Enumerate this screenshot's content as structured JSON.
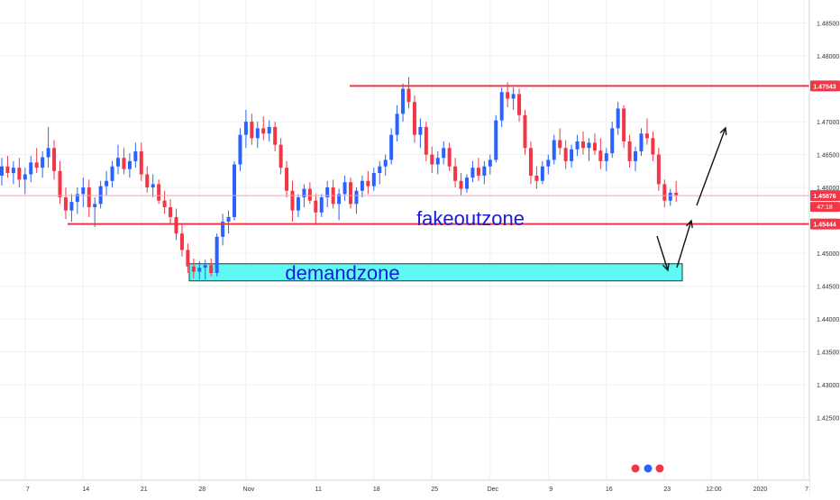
{
  "chart_data": {
    "type": "candlestick",
    "y_axis": {
      "range": [
        1.4155,
        1.4885
      ],
      "ticks": [
        "1.48500",
        "1.48000",
        "1.47000",
        "1.46500",
        "1.46000",
        "1.45000",
        "1.44500",
        "1.44000",
        "1.43500",
        "1.43000",
        "1.42500"
      ],
      "tick_values": [
        1.485,
        1.48,
        1.47,
        1.465,
        1.46,
        1.45,
        1.445,
        1.44,
        1.435,
        1.43,
        1.425
      ]
    },
    "x_axis": {
      "labels": [
        "7",
        "14",
        "21",
        "28",
        "Nov",
        "11",
        "18",
        "25",
        "Dec",
        "9",
        "16",
        "23",
        "12:00",
        "2020",
        "7"
      ],
      "label_index": [
        4,
        14,
        24,
        34,
        42,
        54,
        64,
        74,
        84,
        94,
        104,
        114,
        122,
        130,
        138
      ]
    },
    "horizontal_levels": [
      {
        "name": "resistance",
        "value": 1.47543,
        "label": "1.47543",
        "color": "#f23645"
      },
      {
        "name": "support",
        "value": 1.45444,
        "label": "1.45444",
        "color": "#f23645"
      }
    ],
    "current_price": {
      "value": 1.45876,
      "label": "1.45876",
      "countdown": "47:18",
      "color": "#f23645"
    },
    "zones": [
      {
        "name": "demandzone",
        "label": "demandzone",
        "top": 1.4484,
        "bottom": 1.4458,
        "fill": "#5ff8f5"
      }
    ],
    "annotations": [
      {
        "text": "fakeoutzone",
        "color": "#1a1adc"
      }
    ],
    "colors": {
      "up": "#2962ff",
      "down": "#f23645",
      "grid": "#edf0f5"
    },
    "ohlc": [
      [
        1.4618,
        1.4645,
        1.4603,
        1.4632
      ],
      [
        1.4632,
        1.4648,
        1.4615,
        1.4622
      ],
      [
        1.4622,
        1.464,
        1.4605,
        1.463
      ],
      [
        1.463,
        1.4645,
        1.46,
        1.4612
      ],
      [
        1.4612,
        1.463,
        1.459,
        1.462
      ],
      [
        1.462,
        1.4648,
        1.4608,
        1.4638
      ],
      [
        1.4638,
        1.466,
        1.4622,
        1.463
      ],
      [
        1.463,
        1.4655,
        1.4615,
        1.4646
      ],
      [
        1.4646,
        1.4692,
        1.463,
        1.466
      ],
      [
        1.466,
        1.4672,
        1.4612,
        1.4625
      ],
      [
        1.4625,
        1.464,
        1.4575,
        1.4585
      ],
      [
        1.4585,
        1.46,
        1.4552,
        1.4565
      ],
      [
        1.4565,
        1.459,
        1.4548,
        1.4578
      ],
      [
        1.4578,
        1.46,
        1.456,
        1.459
      ],
      [
        1.459,
        1.4615,
        1.457,
        1.46
      ],
      [
        1.46,
        1.4612,
        1.4555,
        1.457
      ],
      [
        1.457,
        1.4585,
        1.454,
        1.4575
      ],
      [
        1.4575,
        1.461,
        1.4568,
        1.4602
      ],
      [
        1.4602,
        1.4625,
        1.4588,
        1.461
      ],
      [
        1.461,
        1.464,
        1.46,
        1.4632
      ],
      [
        1.4632,
        1.4665,
        1.462,
        1.4645
      ],
      [
        1.4645,
        1.466,
        1.462,
        1.4628
      ],
      [
        1.4628,
        1.4652,
        1.4615,
        1.464
      ],
      [
        1.464,
        1.4668,
        1.463,
        1.4655
      ],
      [
        1.4655,
        1.4668,
        1.461,
        1.462
      ],
      [
        1.462,
        1.4632,
        1.4592,
        1.46
      ],
      [
        1.46,
        1.462,
        1.4585,
        1.4605
      ],
      [
        1.4605,
        1.4612,
        1.4575,
        1.458
      ],
      [
        1.458,
        1.4595,
        1.456,
        1.457
      ],
      [
        1.457,
        1.4582,
        1.4545,
        1.4555
      ],
      [
        1.4555,
        1.4568,
        1.452,
        1.453
      ],
      [
        1.453,
        1.4545,
        1.4495,
        1.4505
      ],
      [
        1.4505,
        1.4515,
        1.447,
        1.448
      ],
      [
        1.448,
        1.4492,
        1.4462,
        1.4472
      ],
      [
        1.4472,
        1.4488,
        1.446,
        1.4478
      ],
      [
        1.4478,
        1.449,
        1.446,
        1.4482
      ],
      [
        1.4482,
        1.4492,
        1.4465,
        1.447
      ],
      [
        1.447,
        1.453,
        1.4465,
        1.4525
      ],
      [
        1.4525,
        1.456,
        1.4512,
        1.4548
      ],
      [
        1.4548,
        1.4565,
        1.453,
        1.4555
      ],
      [
        1.4555,
        1.464,
        1.455,
        1.4635
      ],
      [
        1.4635,
        1.469,
        1.4625,
        1.468
      ],
      [
        1.468,
        1.4718,
        1.466,
        1.47
      ],
      [
        1.47,
        1.4712,
        1.4665,
        1.4675
      ],
      [
        1.4675,
        1.47,
        1.466,
        1.469
      ],
      [
        1.469,
        1.4708,
        1.4672,
        1.4682
      ],
      [
        1.4682,
        1.4702,
        1.467,
        1.4692
      ],
      [
        1.4692,
        1.47,
        1.4655,
        1.4665
      ],
      [
        1.4665,
        1.4675,
        1.462,
        1.463
      ],
      [
        1.463,
        1.464,
        1.4585,
        1.4595
      ],
      [
        1.4595,
        1.461,
        1.4548,
        1.4565
      ],
      [
        1.4565,
        1.459,
        1.4555,
        1.4585
      ],
      [
        1.4585,
        1.4605,
        1.457,
        1.4598
      ],
      [
        1.4598,
        1.4608,
        1.4575,
        1.458
      ],
      [
        1.458,
        1.459,
        1.4545,
        1.4562
      ],
      [
        1.4562,
        1.459,
        1.4555,
        1.4585
      ],
      [
        1.4585,
        1.461,
        1.457,
        1.46
      ],
      [
        1.46,
        1.4612,
        1.4568,
        1.4575
      ],
      [
        1.4575,
        1.4598,
        1.455,
        1.459
      ],
      [
        1.459,
        1.4618,
        1.458,
        1.4608
      ],
      [
        1.4608,
        1.4615,
        1.4568,
        1.4575
      ],
      [
        1.4575,
        1.46,
        1.456,
        1.4595
      ],
      [
        1.4595,
        1.4618,
        1.4585,
        1.461
      ],
      [
        1.461,
        1.4625,
        1.459,
        1.4602
      ],
      [
        1.4602,
        1.463,
        1.4595,
        1.4622
      ],
      [
        1.4622,
        1.464,
        1.4605,
        1.4632
      ],
      [
        1.4632,
        1.465,
        1.4618,
        1.4642
      ],
      [
        1.4642,
        1.469,
        1.4635,
        1.468
      ],
      [
        1.468,
        1.4725,
        1.467,
        1.4712
      ],
      [
        1.4712,
        1.4758,
        1.47,
        1.475
      ],
      [
        1.475,
        1.4768,
        1.472,
        1.473
      ],
      [
        1.473,
        1.474,
        1.4668,
        1.468
      ],
      [
        1.468,
        1.4705,
        1.466,
        1.4692
      ],
      [
        1.4692,
        1.47,
        1.464,
        1.465
      ],
      [
        1.465,
        1.4662,
        1.4622,
        1.4635
      ],
      [
        1.4635,
        1.4655,
        1.462,
        1.4645
      ],
      [
        1.4645,
        1.467,
        1.4635,
        1.466
      ],
      [
        1.466,
        1.4668,
        1.4625,
        1.4632
      ],
      [
        1.4632,
        1.4645,
        1.46,
        1.461
      ],
      [
        1.461,
        1.4622,
        1.4588,
        1.4598
      ],
      [
        1.4598,
        1.462,
        1.4592,
        1.4615
      ],
      [
        1.4615,
        1.464,
        1.4608,
        1.463
      ],
      [
        1.463,
        1.4645,
        1.461,
        1.4618
      ],
      [
        1.4618,
        1.464,
        1.4605,
        1.4632
      ],
      [
        1.4632,
        1.465,
        1.462,
        1.4642
      ],
      [
        1.4642,
        1.471,
        1.4638,
        1.4702
      ],
      [
        1.4702,
        1.4752,
        1.4692,
        1.4745
      ],
      [
        1.4745,
        1.476,
        1.4722,
        1.4735
      ],
      [
        1.4735,
        1.4752,
        1.4718,
        1.4742
      ],
      [
        1.4742,
        1.475,
        1.47,
        1.471
      ],
      [
        1.471,
        1.4718,
        1.465,
        1.466
      ],
      [
        1.466,
        1.467,
        1.4605,
        1.4618
      ],
      [
        1.4618,
        1.4632,
        1.4598,
        1.461
      ],
      [
        1.461,
        1.464,
        1.4605,
        1.4632
      ],
      [
        1.4632,
        1.465,
        1.462,
        1.4642
      ],
      [
        1.4642,
        1.468,
        1.4635,
        1.4672
      ],
      [
        1.4672,
        1.469,
        1.465,
        1.466
      ],
      [
        1.466,
        1.4672,
        1.4628,
        1.464
      ],
      [
        1.464,
        1.4665,
        1.463,
        1.4658
      ],
      [
        1.4658,
        1.468,
        1.4648,
        1.467
      ],
      [
        1.467,
        1.4685,
        1.465,
        1.466
      ],
      [
        1.466,
        1.4675,
        1.464,
        1.4668
      ],
      [
        1.4668,
        1.4682,
        1.465,
        1.4656
      ],
      [
        1.4656,
        1.4675,
        1.4628,
        1.464
      ],
      [
        1.464,
        1.466,
        1.4625,
        1.4652
      ],
      [
        1.4652,
        1.47,
        1.4645,
        1.469
      ],
      [
        1.469,
        1.473,
        1.468,
        1.472
      ],
      [
        1.472,
        1.4725,
        1.466,
        1.467
      ],
      [
        1.467,
        1.468,
        1.463,
        1.464
      ],
      [
        1.464,
        1.4662,
        1.4625,
        1.4655
      ],
      [
        1.4655,
        1.469,
        1.4648,
        1.4682
      ],
      [
        1.4682,
        1.4705,
        1.4665,
        1.4675
      ],
      [
        1.4675,
        1.4685,
        1.464,
        1.465
      ],
      [
        1.465,
        1.466,
        1.4595,
        1.4605
      ],
      [
        1.4605,
        1.4612,
        1.457,
        1.458
      ],
      [
        1.458,
        1.4598,
        1.4572,
        1.4592
      ],
      [
        1.4592,
        1.461,
        1.4578,
        1.4588
      ]
    ]
  }
}
